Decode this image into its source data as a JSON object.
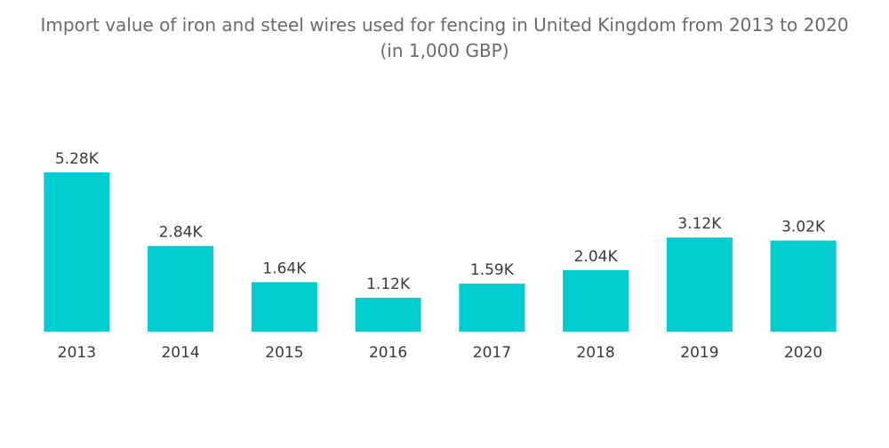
{
  "chart_data": {
    "type": "bar",
    "title_line1": "Import value of iron and steel wires used for fencing in United Kingdom from 2013 to 2020",
    "title_line2": "(in 1,000 GBP)",
    "xlabel": "",
    "ylabel": "",
    "categories": [
      "2013",
      "2014",
      "2015",
      "2016",
      "2017",
      "2018",
      "2019",
      "2020"
    ],
    "values": [
      5280,
      2840,
      1640,
      1120,
      1590,
      2040,
      3120,
      3020
    ],
    "data_labels": [
      "5.28K",
      "2.84K",
      "1.64K",
      "1.12K",
      "1.59K",
      "2.04K",
      "3.12K",
      "3.02K"
    ],
    "ylim": [
      0,
      5280
    ],
    "grid": false,
    "legend": "none",
    "bar_color": "#00cdd0",
    "text_color": "#3a3a3a",
    "title_color": "#6b6b6b"
  }
}
